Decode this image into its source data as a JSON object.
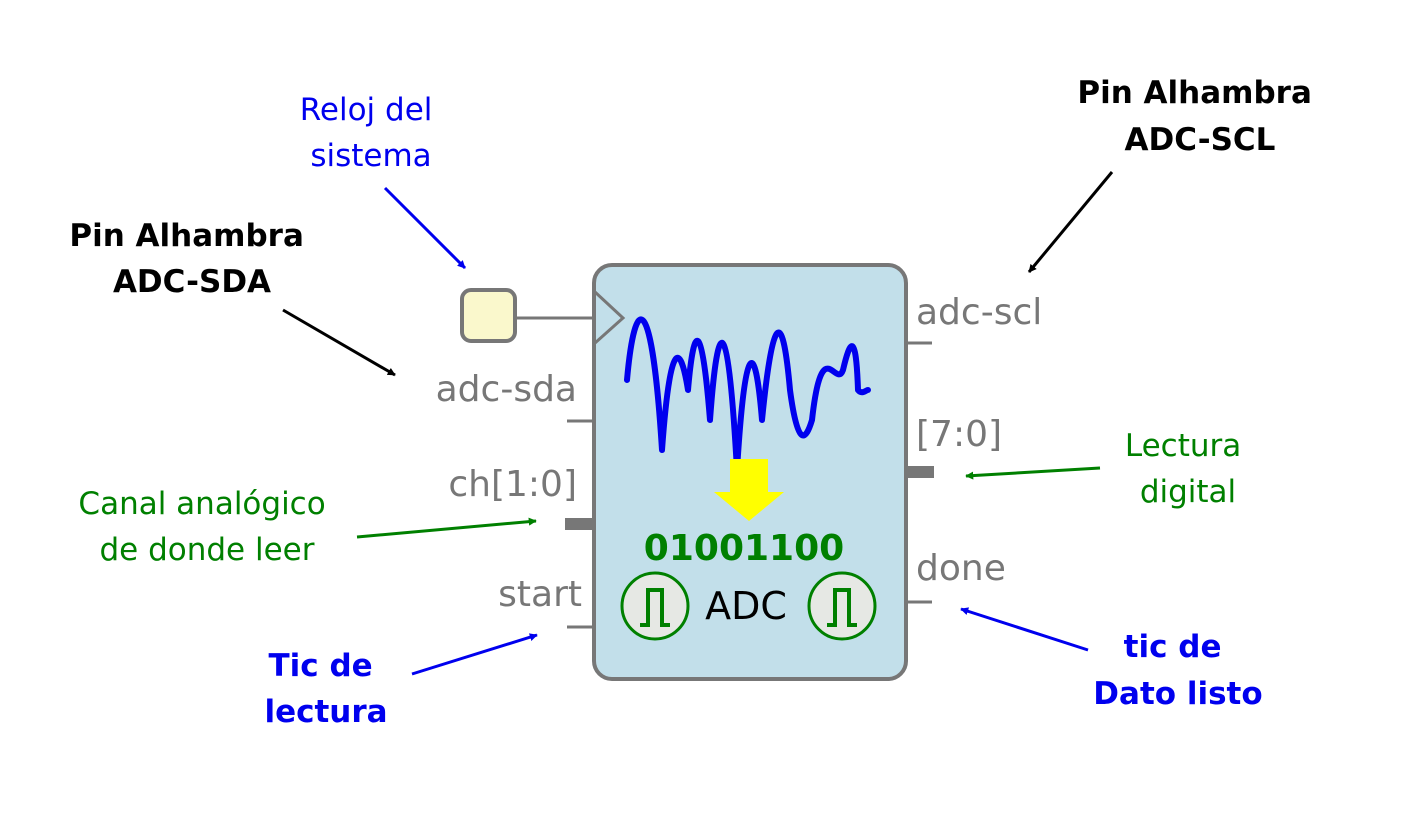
{
  "block": {
    "title": "ADC",
    "binary_value": "01001100"
  },
  "ports": {
    "adc_sda": "adc-sda",
    "ch": "ch[1:0]",
    "start": "start",
    "adc_scl": "adc-scl",
    "data": "[7:0]",
    "done": "done"
  },
  "annotations": {
    "clock": [
      "Reloj del",
      "sistema"
    ],
    "sda_pin": [
      "Pin Alhambra",
      "ADC-SDA"
    ],
    "scl_pin": [
      "Pin Alhambra",
      "ADC-SCL"
    ],
    "channel": [
      "Canal analógico",
      "de donde leer"
    ],
    "read_tick": [
      "Tic de",
      "lectura"
    ],
    "digital_read": [
      "Lectura",
      "digital"
    ],
    "data_ready": [
      "tic de",
      "Dato listo"
    ]
  },
  "colors": {
    "block_fill": "#c2dfea",
    "block_stroke": "#777777",
    "clock_box_fill": "#faf8cc",
    "wave": "#0000ee",
    "arrow_yellow": "#ffff00",
    "green": "#008000",
    "blue": "#0000ee",
    "black": "#000000",
    "port_gray": "#777777"
  },
  "icons": [
    "sine-wave-icon",
    "down-arrow-icon",
    "pulse-icon-left",
    "pulse-icon-right"
  ]
}
